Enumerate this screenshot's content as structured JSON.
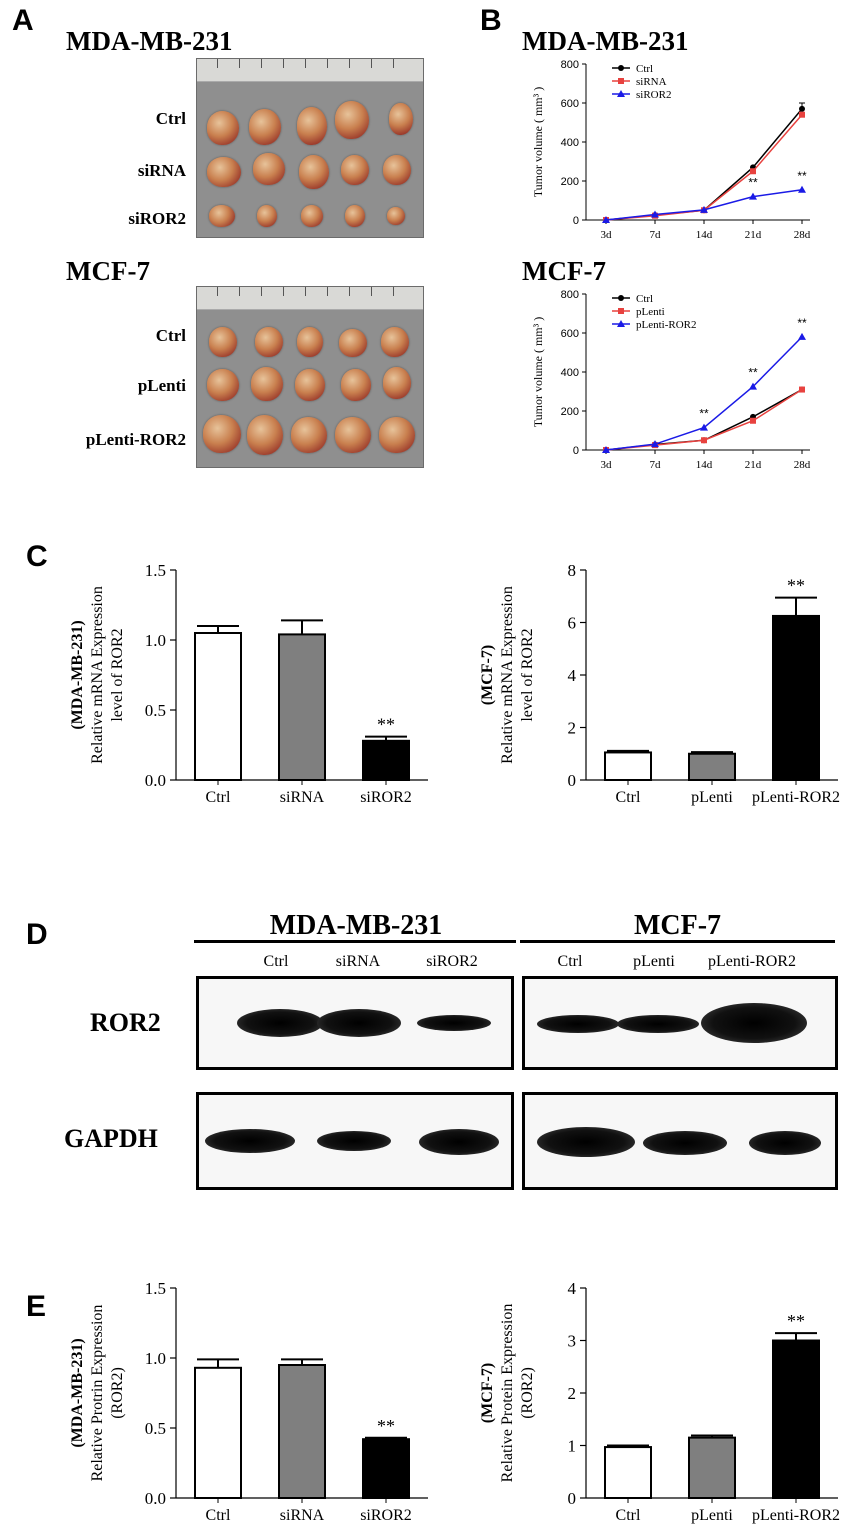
{
  "panel_letters": {
    "a": "A",
    "b": "B",
    "c": "C",
    "d": "D",
    "e": "E"
  },
  "panel_a": {
    "top": {
      "title": "MDA-MB-231",
      "rows": [
        "Ctrl",
        "siRNA",
        "siROR2"
      ]
    },
    "bottom": {
      "title": "MCF-7",
      "rows": [
        "Ctrl",
        "pLenti",
        "pLenti-ROR2"
      ]
    }
  },
  "panel_b_titles": {
    "top": "MDA-MB-231",
    "bottom": "MCF-7"
  },
  "panel_d": {
    "left": {
      "title": "MDA-MB-231",
      "lanes": [
        "Ctrl",
        "siRNA",
        "siROR2"
      ]
    },
    "right": {
      "title": "MCF-7",
      "lanes": [
        "Ctrl",
        "pLenti",
        "pLenti-ROR2"
      ]
    },
    "proteins": [
      "ROR2",
      "GAPDH"
    ]
  },
  "chart_data": [
    {
      "id": "B-MDA-MB-231",
      "type": "line",
      "x": [
        "3d",
        "7d",
        "14d",
        "21d",
        "28d"
      ],
      "ylabel": "Tumor volume ( mm³ )",
      "ylim": [
        0,
        800
      ],
      "yticks": [
        0,
        200,
        400,
        600,
        800
      ],
      "legend_position": "top-left",
      "series": [
        {
          "name": "Ctrl",
          "color": "#000000",
          "marker": "circle",
          "values": [
            0,
            25,
            50,
            270,
            570
          ],
          "errors": [
            0,
            0,
            0,
            0,
            30
          ]
        },
        {
          "name": "siRNA",
          "color": "#e8423f",
          "marker": "square",
          "values": [
            0,
            22,
            50,
            250,
            540
          ],
          "errors": [
            0,
            0,
            0,
            0,
            0
          ]
        },
        {
          "name": "siROR2",
          "color": "#1a1ae6",
          "marker": "triangle",
          "values": [
            0,
            28,
            52,
            120,
            155
          ],
          "errors": [
            0,
            0,
            0,
            0,
            0
          ]
        }
      ],
      "annotations": [
        {
          "x": "21d",
          "y": 120,
          "text": "**"
        },
        {
          "x": "28d",
          "y": 155,
          "text": "**"
        }
      ]
    },
    {
      "id": "B-MCF-7",
      "type": "line",
      "x": [
        "3d",
        "7d",
        "14d",
        "21d",
        "28d"
      ],
      "ylabel": "Tumor volume ( mm³ )",
      "ylim": [
        0,
        800
      ],
      "yticks": [
        0,
        200,
        400,
        600,
        800
      ],
      "legend_position": "top-left",
      "series": [
        {
          "name": "Ctrl",
          "color": "#000000",
          "marker": "circle",
          "values": [
            0,
            28,
            50,
            170,
            310
          ],
          "errors": [
            0,
            0,
            0,
            0,
            0
          ]
        },
        {
          "name": "pLenti",
          "color": "#e8423f",
          "marker": "square",
          "values": [
            0,
            25,
            50,
            150,
            310
          ],
          "errors": [
            0,
            0,
            0,
            0,
            0
          ]
        },
        {
          "name": "pLenti-ROR2",
          "color": "#1a1ae6",
          "marker": "triangle",
          "values": [
            0,
            30,
            115,
            325,
            580
          ],
          "errors": [
            0,
            0,
            0,
            0,
            0
          ]
        }
      ],
      "annotations": [
        {
          "x": "14d",
          "y": 115,
          "text": "**"
        },
        {
          "x": "21d",
          "y": 325,
          "text": "**"
        },
        {
          "x": "28d",
          "y": 580,
          "text": "**"
        }
      ]
    },
    {
      "id": "C-MDA-MB-231",
      "type": "bar",
      "categories": [
        "Ctrl",
        "siRNA",
        "siROR2"
      ],
      "values": [
        1.05,
        1.04,
        0.28
      ],
      "errors": [
        0.05,
        0.1,
        0.03
      ],
      "fills": [
        "#ffffff",
        "#7f7f7f",
        "#000000"
      ],
      "ylabel_lines": [
        "(MDA-MB-231)",
        "Relative mRNA Expression",
        "level of ROR2"
      ],
      "ylim": [
        0,
        1.5
      ],
      "yticks": [
        "0.0",
        "0.5",
        "1.0",
        "1.5"
      ],
      "annotations": [
        {
          "category": "siROR2",
          "text": "**"
        }
      ]
    },
    {
      "id": "C-MCF-7",
      "type": "bar",
      "categories": [
        "Ctrl",
        "pLenti",
        "pLenti-ROR2"
      ],
      "values": [
        1.05,
        1.0,
        6.25
      ],
      "errors": [
        0.06,
        0.06,
        0.7
      ],
      "fills": [
        "#ffffff",
        "#7f7f7f",
        "#000000"
      ],
      "ylabel_lines": [
        "(MCF-7)",
        "Relative mRNA Expression",
        "level of ROR2"
      ],
      "ylim": [
        0,
        8
      ],
      "yticks": [
        "0",
        "2",
        "4",
        "6",
        "8"
      ],
      "annotations": [
        {
          "category": "pLenti-ROR2",
          "text": "**"
        }
      ]
    },
    {
      "id": "E-MDA-MB-231",
      "type": "bar",
      "categories": [
        "Ctrl",
        "siRNA",
        "siROR2"
      ],
      "values": [
        0.93,
        0.95,
        0.42
      ],
      "errors": [
        0.06,
        0.04,
        0.01
      ],
      "fills": [
        "#ffffff",
        "#7f7f7f",
        "#000000"
      ],
      "ylabel_lines": [
        "(MDA-MB-231)",
        "Relative Protrin Expression",
        "(ROR2)"
      ],
      "ylim": [
        0,
        1.5
      ],
      "yticks": [
        "0.0",
        "0.5",
        "1.0",
        "1.5"
      ],
      "annotations": [
        {
          "category": "siROR2",
          "text": "**"
        }
      ]
    },
    {
      "id": "E-MCF-7",
      "type": "bar",
      "categories": [
        "Ctrl",
        "pLenti",
        "pLenti-ROR2"
      ],
      "values": [
        0.97,
        1.15,
        3.0
      ],
      "errors": [
        0.03,
        0.04,
        0.14
      ],
      "fills": [
        "#ffffff",
        "#7f7f7f",
        "#000000"
      ],
      "ylabel_lines": [
        "(MCF-7)",
        "Relative Protein Expression",
        "(ROR2)"
      ],
      "ylim": [
        0,
        4
      ],
      "yticks": [
        "0",
        "1",
        "2",
        "3",
        "4"
      ],
      "annotations": [
        {
          "category": "pLenti-ROR2",
          "text": "**"
        }
      ]
    }
  ]
}
